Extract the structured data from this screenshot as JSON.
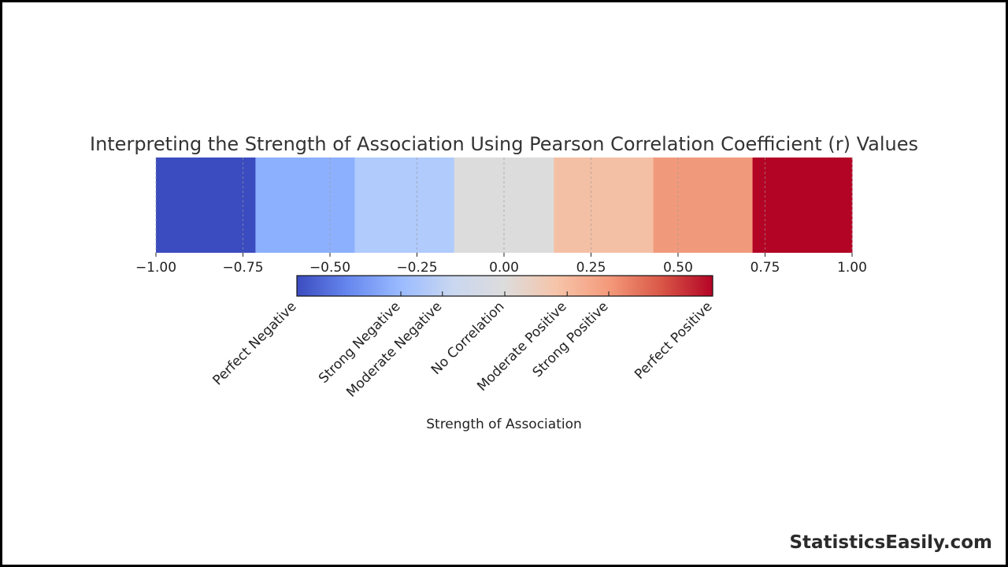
{
  "brand": "StatisticsEasily.com",
  "chart_data": {
    "type": "heatmap",
    "title": "Interpreting the Strength of Association Using Pearson Correlation Coefficient (r) Values",
    "xlim": [
      -1.0,
      1.0
    ],
    "x_ticks": [
      -1.0,
      -0.75,
      -0.5,
      -0.25,
      0.0,
      0.25,
      0.5,
      0.75,
      1.0
    ],
    "x_tick_labels": [
      "−1.00",
      "−0.75",
      "−0.50",
      "−0.25",
      "0.00",
      "0.25",
      "0.50",
      "0.75",
      "1.00"
    ],
    "grid": true,
    "bands": [
      {
        "from": -1.0,
        "to": -0.714,
        "color": "#3b4cc0"
      },
      {
        "from": -0.714,
        "to": -0.429,
        "color": "#8db0fe"
      },
      {
        "from": -0.429,
        "to": -0.143,
        "color": "#b0cbfc"
      },
      {
        "from": -0.143,
        "to": 0.143,
        "color": "#dddcdc"
      },
      {
        "from": 0.143,
        "to": 0.429,
        "color": "#f4c0a5"
      },
      {
        "from": 0.429,
        "to": 0.714,
        "color": "#f19a7b"
      },
      {
        "from": 0.714,
        "to": 1.0,
        "color": "#b40426"
      }
    ],
    "colorbar": {
      "label": "Strength of Association",
      "range": [
        -1.0,
        1.0
      ],
      "colors": [
        "#3b4cc0",
        "#6788ee",
        "#9abbff",
        "#c9d7f0",
        "#dddcdc",
        "#f6c4a9",
        "#f49a7b",
        "#d95847",
        "#b40426"
      ],
      "categories": [
        {
          "label": "Perfect Negative",
          "value": -1.0
        },
        {
          "label": "Strong Negative",
          "value": -0.5
        },
        {
          "label": "Moderate Negative",
          "value": -0.3
        },
        {
          "label": "No Correlation",
          "value": 0.0
        },
        {
          "label": "Moderate Positive",
          "value": 0.3
        },
        {
          "label": "Strong Positive",
          "value": 0.5
        },
        {
          "label": "Perfect Positive",
          "value": 1.0
        }
      ]
    }
  }
}
